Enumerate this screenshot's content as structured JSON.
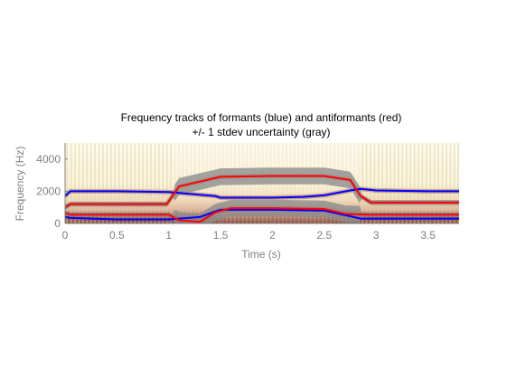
{
  "chart_data": {
    "type": "line",
    "title": "Frequency tracks of formants (blue) and antiformants (red)",
    "subtitle": "+/- 1 stdev uncertainty (gray)",
    "xlabel": "Time (s)",
    "ylabel": "Frequency (Hz)",
    "xlim": [
      0,
      3.8
    ],
    "ylim": [
      0,
      5000
    ],
    "x_ticks": [
      0,
      0.5,
      1,
      1.5,
      2,
      2.5,
      3,
      3.5
    ],
    "x_tick_labels": [
      "0",
      "0.5",
      "1",
      "1.5",
      "2",
      "2.5",
      "3",
      "3.5"
    ],
    "y_ticks": [
      0,
      2000,
      4000
    ],
    "y_tick_labels": [
      "0",
      "2000",
      "4000"
    ],
    "grid": false,
    "background": "spectrogram",
    "colors": {
      "formant": "#0000ff",
      "antiformant": "#ff0000",
      "uncertainty": "#8c8c8c",
      "axis": "#808080"
    },
    "series": [
      {
        "color": "#0000ff",
        "x": [
          0,
          0.05,
          0.5,
          1.0,
          1.45,
          1.5,
          2.0,
          2.3,
          2.5,
          2.75,
          2.85,
          3.0,
          3.5,
          3.8
        ],
        "y": [
          1700,
          2000,
          2000,
          1950,
          1700,
          1600,
          1600,
          1650,
          1750,
          2050,
          2150,
          2050,
          2000,
          2000
        ]
      },
      {
        "color": "#0000ff",
        "x": [
          0,
          0.05,
          0.5,
          1.0,
          1.3,
          1.45,
          1.5,
          2.0,
          2.5,
          2.75,
          2.85,
          3.0,
          3.5,
          3.8
        ],
        "y": [
          400,
          350,
          250,
          250,
          400,
          750,
          850,
          850,
          800,
          450,
          300,
          300,
          300,
          300
        ]
      },
      {
        "color": "#ff0000",
        "x": [
          0,
          0.05,
          0.5,
          0.98,
          1.1,
          1.5,
          2.0,
          2.5,
          2.75,
          2.85,
          2.95,
          3.5,
          3.8
        ],
        "y": [
          1000,
          1200,
          1200,
          1200,
          2300,
          2900,
          2950,
          2950,
          2700,
          1700,
          1300,
          1300,
          1300
        ]
      },
      {
        "color": "#ff0000",
        "x": [
          0,
          0.05,
          0.5,
          1.0,
          1.1,
          1.3,
          1.45,
          1.6,
          2.0,
          2.5,
          2.7,
          2.9,
          3.5,
          3.8
        ],
        "y": [
          650,
          550,
          550,
          550,
          200,
          100,
          700,
          950,
          950,
          900,
          600,
          550,
          550,
          550
        ]
      }
    ]
  }
}
